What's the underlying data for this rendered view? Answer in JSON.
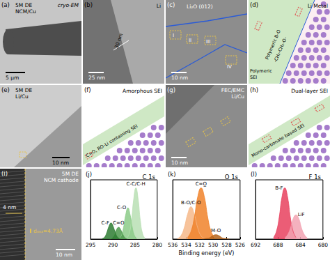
{
  "panels": [
    {
      "label": "(a)",
      "texts": [
        "5M DE",
        "NCM/Cu",
        "cryo-EM",
        "5 µm"
      ]
    },
    {
      "label": "(b)",
      "texts": [
        "Li",
        "30 nm",
        "25 nm"
      ]
    },
    {
      "label": "(c)",
      "texts": [
        "Li₂O (012)",
        "I",
        "II",
        "III",
        "IV",
        "10 nm"
      ]
    },
    {
      "label": "(d)",
      "texts": [
        "Li Metal",
        "Polymeric B-O",
        "-CH₂-CH₂-O-",
        "Polymeric",
        "SEI"
      ]
    },
    {
      "label": "(e)",
      "texts": [
        "5M DE",
        "Li/Cu",
        "10 nm"
      ]
    },
    {
      "label": "(f)",
      "texts": [
        "Amorphous SEI",
        "C=O, RO-Li containing SEI"
      ]
    },
    {
      "label": "(g)",
      "texts": [
        "FEC/EMC",
        "Li/Cu",
        "10 nm"
      ]
    },
    {
      "label": "(h)",
      "texts": [
        "Dual-layer SEI",
        "Mono-carbonate based SEI"
      ]
    },
    {
      "label": "(i)",
      "texts": [
        "5M DE",
        "NCM cathode",
        "4 nm",
        "d₀₀₃=4.73Å",
        "10 nm"
      ]
    }
  ],
  "chart_data": [
    {
      "type": "area",
      "panel": "(j)",
      "title": "C 1s",
      "xlim": [
        295,
        280
      ],
      "xticks": [
        295,
        290,
        285,
        280
      ],
      "ylim": [
        0,
        110
      ],
      "tick_labels": "x",
      "grid": false,
      "series": [
        {
          "name": "C-C/C-H",
          "color": "#b9dfb4",
          "x": [
            282.8,
            283.3,
            283.8,
            284.3,
            284.8,
            285.3,
            285.8,
            286.3,
            286.8
          ],
          "values": [
            2,
            10,
            34,
            74,
            95,
            74,
            34,
            10,
            2
          ]
        },
        {
          "name": "C-O",
          "color": "#8ccb88",
          "x": [
            284.6,
            285.1,
            285.6,
            286.1,
            286.6,
            287.1,
            287.6,
            288.1,
            288.6
          ],
          "values": [
            1,
            6,
            21,
            45,
            58,
            45,
            21,
            6,
            1
          ]
        },
        {
          "name": "C=O",
          "color": "#4e9a4e",
          "x": [
            286.7,
            287.2,
            287.7,
            288.2,
            288.7,
            289.2,
            289.7,
            290.2,
            290.7
          ],
          "values": [
            0,
            2,
            8,
            17,
            22,
            17,
            8,
            2,
            0
          ]
        },
        {
          "name": "C-F",
          "color": "#2e7d32",
          "x": [
            288.4,
            288.9,
            289.4,
            289.9,
            290.4,
            290.9,
            291.4,
            291.9,
            292.4
          ],
          "values": [
            1,
            3,
            11,
            23,
            30,
            23,
            11,
            3,
            1
          ]
        }
      ]
    },
    {
      "type": "area",
      "panel": "(k)",
      "title": "O 1s",
      "xlabel": "Binding energy (eV)",
      "xlim": [
        536,
        526
      ],
      "xticks": [
        536,
        534,
        532,
        530,
        528,
        526
      ],
      "ylim": [
        0,
        110
      ],
      "tick_labels": "x",
      "grid": false,
      "series": [
        {
          "name": "B-O/C-O",
          "color": "#f6b98a",
          "x": [
            531.3,
            531.8,
            532.3,
            532.8,
            533.3,
            533.8,
            534.3,
            534.8,
            535.3
          ],
          "values": [
            1,
            6,
            21,
            46,
            60,
            46,
            21,
            6,
            1
          ]
        },
        {
          "name": "C=O̲",
          "color": "#f0822a",
          "x": [
            529.8,
            530.3,
            530.8,
            531.3,
            531.8,
            532.3,
            532.8,
            533.3,
            533.8
          ],
          "values": [
            3,
            14,
            40,
            78,
            95,
            78,
            40,
            14,
            3
          ]
        },
        {
          "name": "M-O",
          "color": "#b5651d",
          "x": [
            527.6,
            528.1,
            528.6,
            529.1,
            529.6,
            530.1,
            530.6,
            531.1,
            531.6
          ],
          "values": [
            0,
            1,
            2,
            6,
            8,
            6,
            2,
            1,
            0
          ]
        }
      ]
    },
    {
      "type": "area",
      "panel": "(l)",
      "title": "F 1s",
      "xlim": [
        692,
        680
      ],
      "xticks": [
        692,
        688,
        684,
        680
      ],
      "ylim": [
        0,
        110
      ],
      "tick_labels": "x",
      "grid": false,
      "series": [
        {
          "name": "B-F",
          "color": "#e8415e",
          "x": [
            684.8,
            685.3,
            685.8,
            686.3,
            686.8,
            687.3,
            687.8,
            688.3,
            688.8
          ],
          "values": [
            3,
            14,
            40,
            78,
            95,
            78,
            40,
            14,
            3
          ]
        },
        {
          "name": "LiF",
          "color": "#f2a3b3",
          "x": [
            682.8,
            683.3,
            683.8,
            684.3,
            684.8,
            685.3,
            685.8,
            686.3,
            686.8
          ],
          "values": [
            2,
            8,
            20,
            38,
            45,
            38,
            20,
            8,
            2
          ]
        }
      ]
    }
  ]
}
